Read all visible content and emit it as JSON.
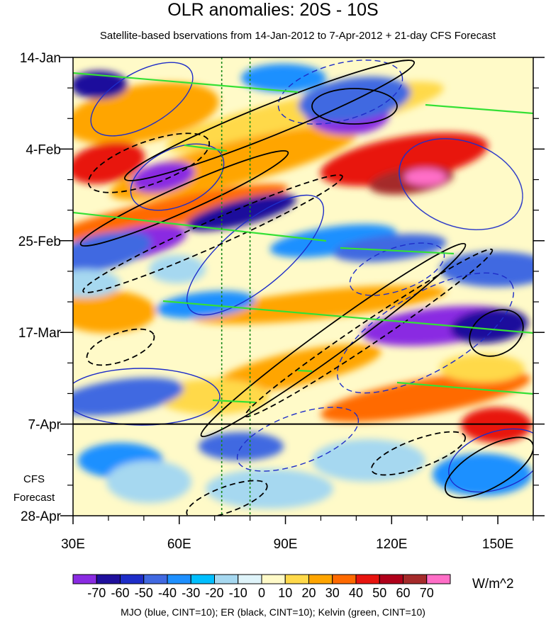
{
  "chart_data": {
    "type": "heatmap",
    "title": "OLR anomalies: 20S - 10S",
    "subtitle": "Satellite-based bservations from 14-Jan-2012 to 7-Apr-2012 + 21-day CFS Forecast",
    "x_ticks": [
      "30E",
      "60E",
      "90E",
      "120E",
      "150E"
    ],
    "x_tick_values": [
      30,
      60,
      90,
      120,
      150
    ],
    "xlim": [
      30,
      160
    ],
    "y_ticks": [
      "14-Jan",
      "4-Feb",
      "25-Feb",
      "17-Mar",
      "7-Apr",
      "28-Apr"
    ],
    "y_tick_values": [
      "2012-01-14",
      "2012-02-04",
      "2012-02-25",
      "2012-03-17",
      "2012-04-07",
      "2012-04-28"
    ],
    "forecast_start": "7-Apr",
    "forecast_label": [
      "CFS",
      "Forecast"
    ],
    "reference_longitudes": [
      72,
      80
    ],
    "colorbar": {
      "labels": [
        "-70",
        "-60",
        "-50",
        "-40",
        "-30",
        "-20",
        "-10",
        "0",
        "10",
        "20",
        "30",
        "40",
        "50",
        "60",
        "70"
      ],
      "colors": [
        "#8a2be2",
        "#1f0f9c",
        "#1e2dc8",
        "#4169e1",
        "#1e90ff",
        "#00bfff",
        "#a6d8f0",
        "#dff4fa",
        "#fffac8",
        "#ffd94a",
        "#ffa500",
        "#ff6a00",
        "#e8140f",
        "#b0001a",
        "#a52a2a",
        "#ff6ec7"
      ],
      "units": "W/m^2"
    },
    "contours": [
      {
        "field": "MJO",
        "color": "blue",
        "interval": 10
      },
      {
        "field": "ER",
        "color": "black",
        "interval": 10
      },
      {
        "field": "Kelvin",
        "color": "green",
        "interval": 10
      }
    ],
    "footer": "MJO (blue, CINT=10); ER (black, CINT=10); Kelvin (green, CINT=10)"
  }
}
